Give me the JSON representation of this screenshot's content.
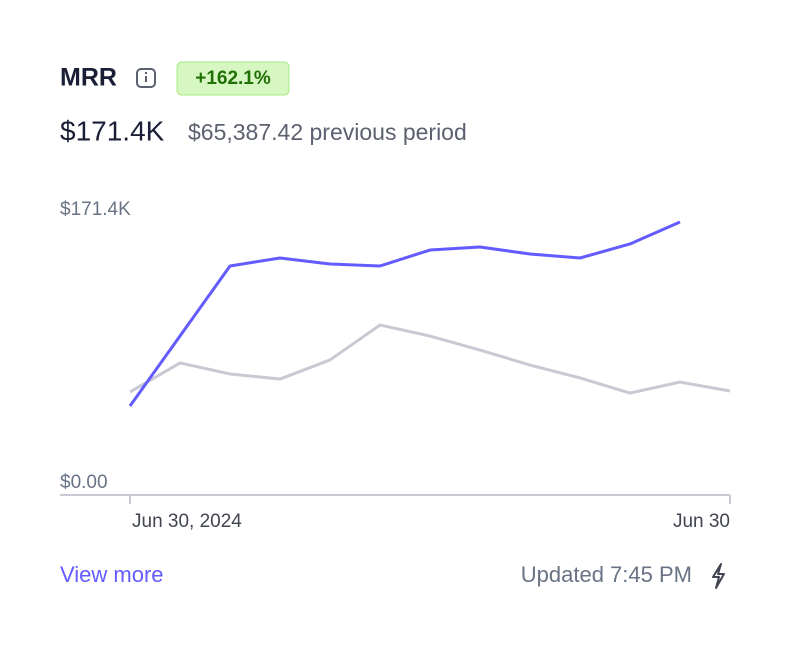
{
  "header": {
    "title": "MRR",
    "badge": "+162.1%",
    "value": "$171.4K",
    "previous": "$65,387.42 previous period"
  },
  "chart_data": {
    "type": "line",
    "categories": [
      "Jun 30, 2024",
      null,
      null,
      null,
      null,
      null,
      null,
      null,
      null,
      null,
      null,
      null,
      "Jun 30"
    ],
    "series": [
      {
        "color": "#c7c9d3",
        "values": [
          64700,
          82900,
          76000,
          72800,
          84800,
          106700,
          99800,
          91000,
          81600,
          73500,
          64000,
          70900,
          65300
        ]
      },
      {
        "color": "#635bff",
        "values": [
          55900,
          99800,
          143800,
          148800,
          145000,
          143800,
          153800,
          155700,
          151300,
          148800,
          157600,
          171400,
          null
        ]
      }
    ],
    "ylim": [
      0,
      171400
    ],
    "yticks": [
      {
        "value": 0,
        "label": "$0.00"
      },
      {
        "value": 171400,
        "label": "$171.4K"
      }
    ]
  },
  "footer": {
    "link": "View more",
    "updated": "Updated 7:45 PM"
  }
}
